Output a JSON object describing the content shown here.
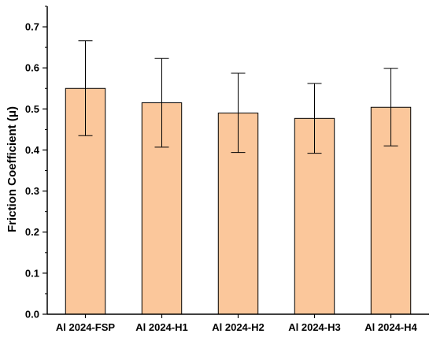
{
  "chart_data": {
    "type": "bar",
    "title": "",
    "xlabel": "",
    "ylabel": "Friction Coefficient (μ)",
    "categories": [
      "Al 2024-FSP",
      "Al 2024-H1",
      "Al 2024-H2",
      "Al 2024-H3",
      "Al 2024-H4"
    ],
    "values": [
      0.55,
      0.515,
      0.49,
      0.477,
      0.504
    ],
    "error_low": [
      0.435,
      0.407,
      0.394,
      0.392,
      0.41
    ],
    "error_high": [
      0.666,
      0.623,
      0.587,
      0.562,
      0.599
    ],
    "ylim": [
      0,
      0.75
    ],
    "yticks": [
      "0.0",
      "0.1",
      "0.2",
      "0.3",
      "0.4",
      "0.5",
      "0.6",
      "0.7"
    ],
    "bar_color": "#fbc79b",
    "bar_edge_color": "#000000",
    "grid": false,
    "legend": "none"
  }
}
